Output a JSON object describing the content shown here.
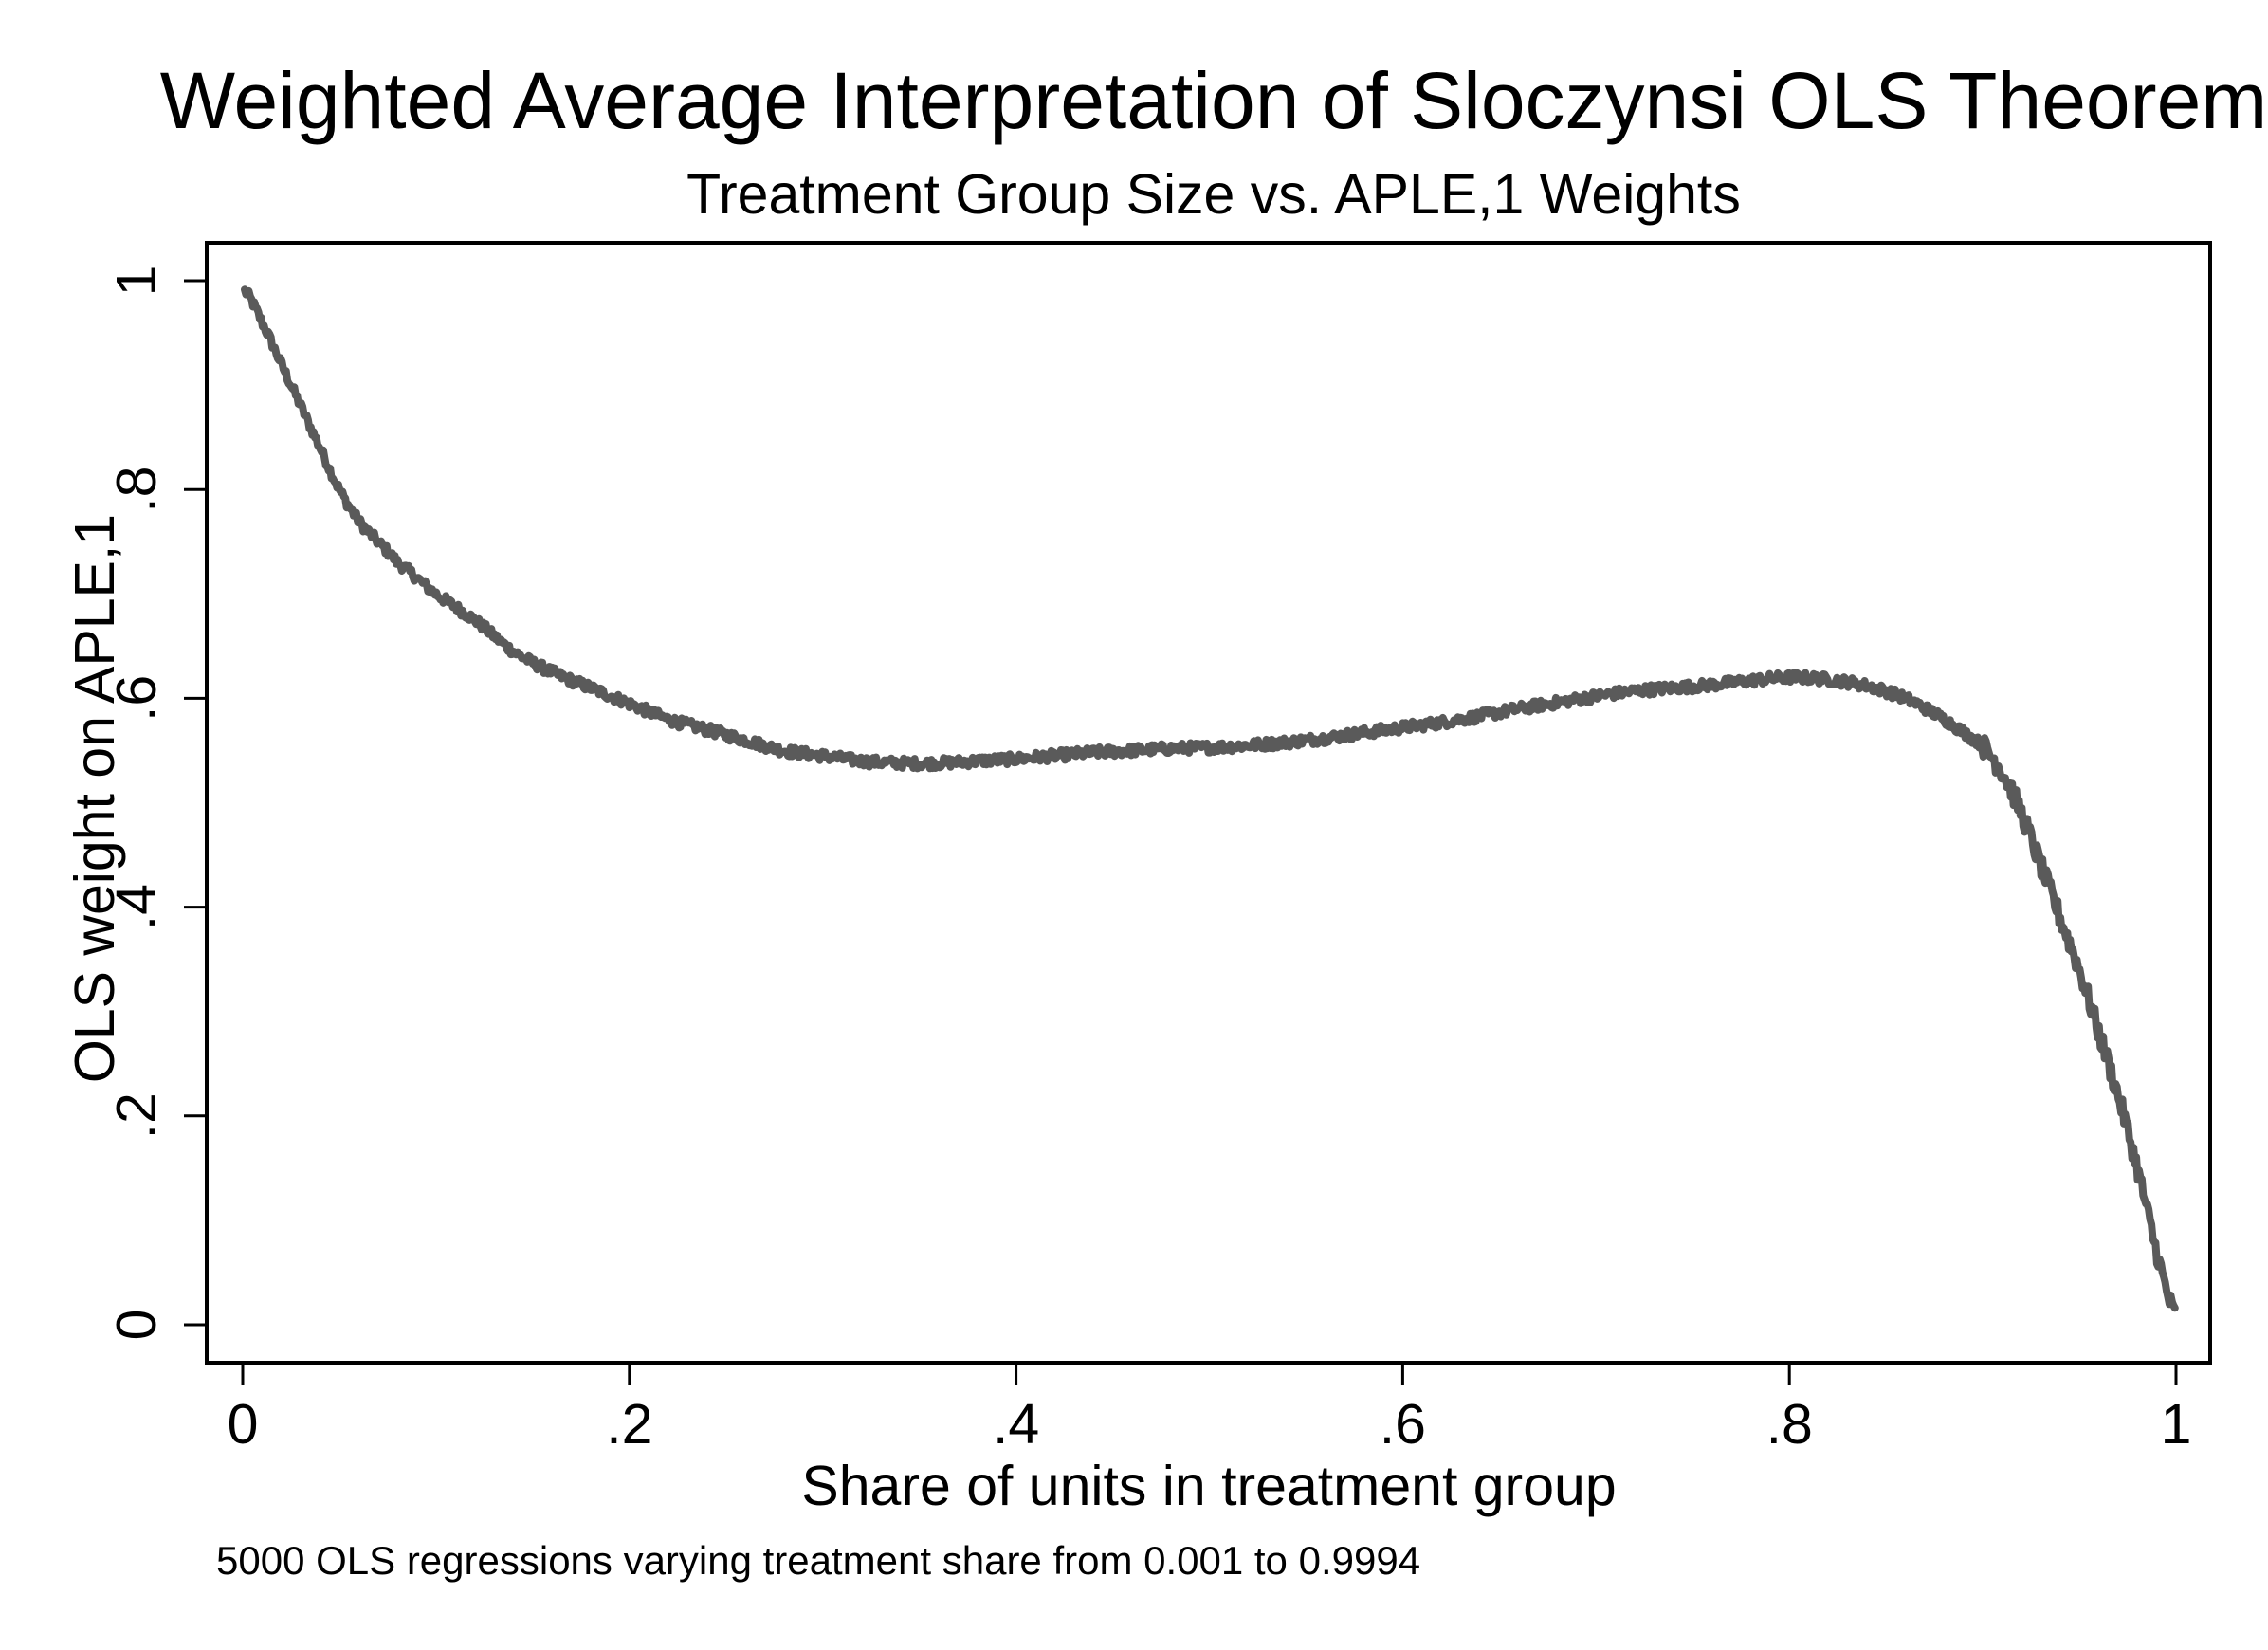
{
  "chart_data": {
    "type": "line",
    "title": "Weighted Average Interpretation of Sloczynsi OLS Theorem",
    "subtitle": "Treatment Group Size vs. APLE,1 Weights",
    "xlabel": "Share of units in treatment group",
    "ylabel": "OLS weight on APLE,1",
    "note": "5000 OLS regressions varying treatment share from 0.001 to 0.9994",
    "xlim": [
      0,
      1
    ],
    "ylim": [
      0,
      1
    ],
    "xticks": [
      0,
      0.2,
      0.4,
      0.6,
      0.8,
      1
    ],
    "xtick_labels": [
      "0",
      ".2",
      ".4",
      ".6",
      ".8",
      "1"
    ],
    "yticks": [
      0,
      0.2,
      0.4,
      0.6,
      0.8,
      1
    ],
    "ytick_labels": [
      "0",
      ".2",
      ".4",
      ".6",
      ".8",
      "1"
    ],
    "grid": false,
    "line_color": "#5a5a5a",
    "series": [
      {
        "x": [
          0.001,
          0.01,
          0.02,
          0.03,
          0.04,
          0.05,
          0.06,
          0.07,
          0.08,
          0.1,
          0.12,
          0.14,
          0.16,
          0.18,
          0.2,
          0.22,
          0.24,
          0.26,
          0.28,
          0.3,
          0.32,
          0.34,
          0.36,
          0.38,
          0.4,
          0.42,
          0.44,
          0.46,
          0.48,
          0.5,
          0.52,
          0.54,
          0.56,
          0.58,
          0.6,
          0.62,
          0.64,
          0.66,
          0.68,
          0.7,
          0.72,
          0.74,
          0.76,
          0.78,
          0.8,
          0.82,
          0.84,
          0.86,
          0.88,
          0.9,
          0.91,
          0.92,
          0.93,
          0.94,
          0.95,
          0.96,
          0.97,
          0.98,
          0.99,
          0.9994
        ],
        "y": [
          0.99,
          0.96,
          0.92,
          0.88,
          0.84,
          0.8,
          0.77,
          0.75,
          0.73,
          0.7,
          0.675,
          0.645,
          0.625,
          0.61,
          0.595,
          0.58,
          0.57,
          0.56,
          0.55,
          0.545,
          0.54,
          0.538,
          0.538,
          0.54,
          0.542,
          0.545,
          0.548,
          0.55,
          0.552,
          0.553,
          0.555,
          0.558,
          0.562,
          0.567,
          0.572,
          0.577,
          0.583,
          0.59,
          0.596,
          0.602,
          0.607,
          0.61,
          0.613,
          0.617,
          0.62,
          0.618,
          0.612,
          0.6,
          0.58,
          0.555,
          0.53,
          0.49,
          0.44,
          0.39,
          0.34,
          0.28,
          0.22,
          0.15,
          0.07,
          0.01
        ]
      }
    ]
  }
}
